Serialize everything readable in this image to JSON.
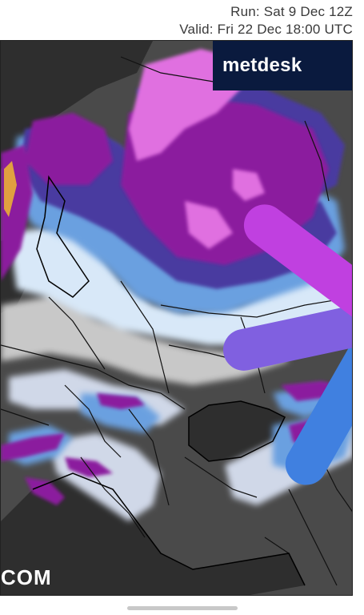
{
  "header": {
    "run": "Run: Sat 9 Dec 12Z",
    "valid": "Valid: Fri 22 Dec 18:00 UTC"
  },
  "logo": {
    "text": "metdesk",
    "icon": "starburst-icon"
  },
  "watermark": {
    "text": "COM"
  },
  "map": {
    "type": "snow-depth forecast map",
    "region": "Europe"
  },
  "colors": {
    "snow_heavy": "#8b1a9e",
    "snow_very_heavy": "#e070e0",
    "snow_moderate": "#4a3aa0",
    "snow_light": "#6aa0e0",
    "snow_trace": "#d8e8f8",
    "land": "#4a4a4a",
    "sea": "#2e2e2e",
    "logo_bg": "#0a1a3e"
  }
}
